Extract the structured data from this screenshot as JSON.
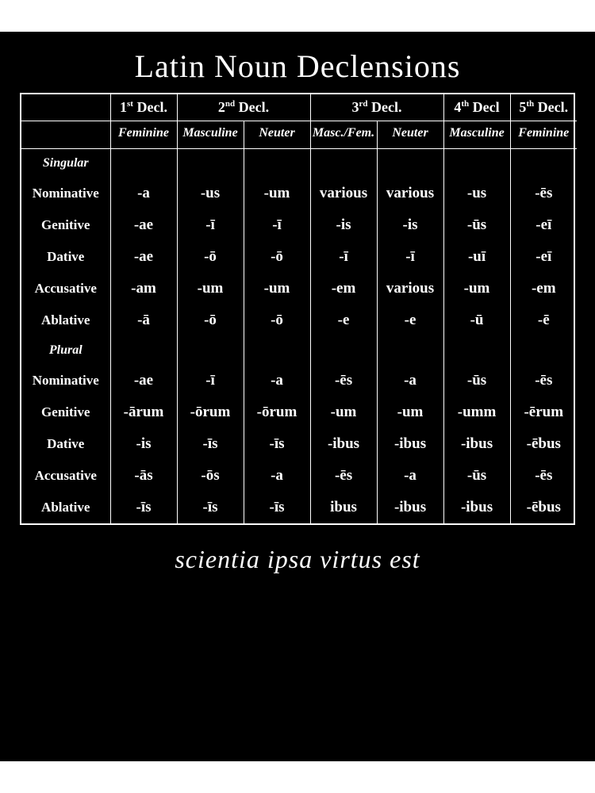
{
  "colors": {
    "page_bg": "#ffffff",
    "panel_bg": "#000000",
    "text": "#ffffff",
    "border": "#ffffff"
  },
  "title": "Latin Noun Declensions",
  "motto": "scientia ipsa virtus est",
  "declension_headers": [
    {
      "ord": "1",
      "sup": "st",
      "tail": " Decl.",
      "span": 1
    },
    {
      "ord": "2",
      "sup": "nd",
      "tail": " Decl.",
      "span": 2
    },
    {
      "ord": "3",
      "sup": "rd",
      "tail": " Decl.",
      "span": 2
    },
    {
      "ord": "4",
      "sup": "th",
      "tail": " Decl",
      "span": 1
    },
    {
      "ord": "5",
      "sup": "th",
      "tail": " Decl.",
      "span": 1
    }
  ],
  "gender_headers": [
    "Feminine",
    "Masculine",
    "Neuter",
    "Masc./Fem.",
    "Neuter",
    "Masculine",
    "Feminine"
  ],
  "sections": [
    {
      "label": "Singular",
      "rows": [
        {
          "case": "Nominative",
          "cells": [
            "-a",
            "-us",
            "-um",
            "various",
            "various",
            "-us",
            "-ēs"
          ]
        },
        {
          "case": "Genitive",
          "cells": [
            "-ae",
            "-ī",
            "-ī",
            "-is",
            "-is",
            "-ūs",
            "-eī"
          ]
        },
        {
          "case": "Dative",
          "cells": [
            "-ae",
            "-ō",
            "-ō",
            "-ī",
            "-ī",
            "-uī",
            "-eī"
          ]
        },
        {
          "case": "Accusative",
          "cells": [
            "-am",
            "-um",
            "-um",
            "-em",
            "various",
            "-um",
            "-em"
          ]
        },
        {
          "case": "Ablative",
          "cells": [
            "-ā",
            "-ō",
            "-ō",
            "-e",
            "-e",
            "-ū",
            "-ē"
          ]
        }
      ]
    },
    {
      "label": "Plural",
      "rows": [
        {
          "case": "Nominative",
          "cells": [
            "-ae",
            "-ī",
            "-a",
            "-ēs",
            "-a",
            "-ūs",
            "-ēs"
          ]
        },
        {
          "case": "Genitive",
          "cells": [
            "-ārum",
            "-ōrum",
            "-ōrum",
            "-um",
            "-um",
            "-umm",
            "-ērum"
          ]
        },
        {
          "case": "Dative",
          "cells": [
            "-is",
            "-īs",
            "-īs",
            "-ibus",
            "-ibus",
            "-ibus",
            "-ēbus"
          ]
        },
        {
          "case": "Accusative",
          "cells": [
            "-ās",
            "-ōs",
            "-a",
            "-ēs",
            "-a",
            "-ūs",
            "-ēs"
          ]
        },
        {
          "case": "Ablative",
          "cells": [
            "-īs",
            "-īs",
            "-īs",
            "ibus",
            "-ibus",
            "-ibus",
            "-ēbus"
          ]
        }
      ]
    }
  ]
}
